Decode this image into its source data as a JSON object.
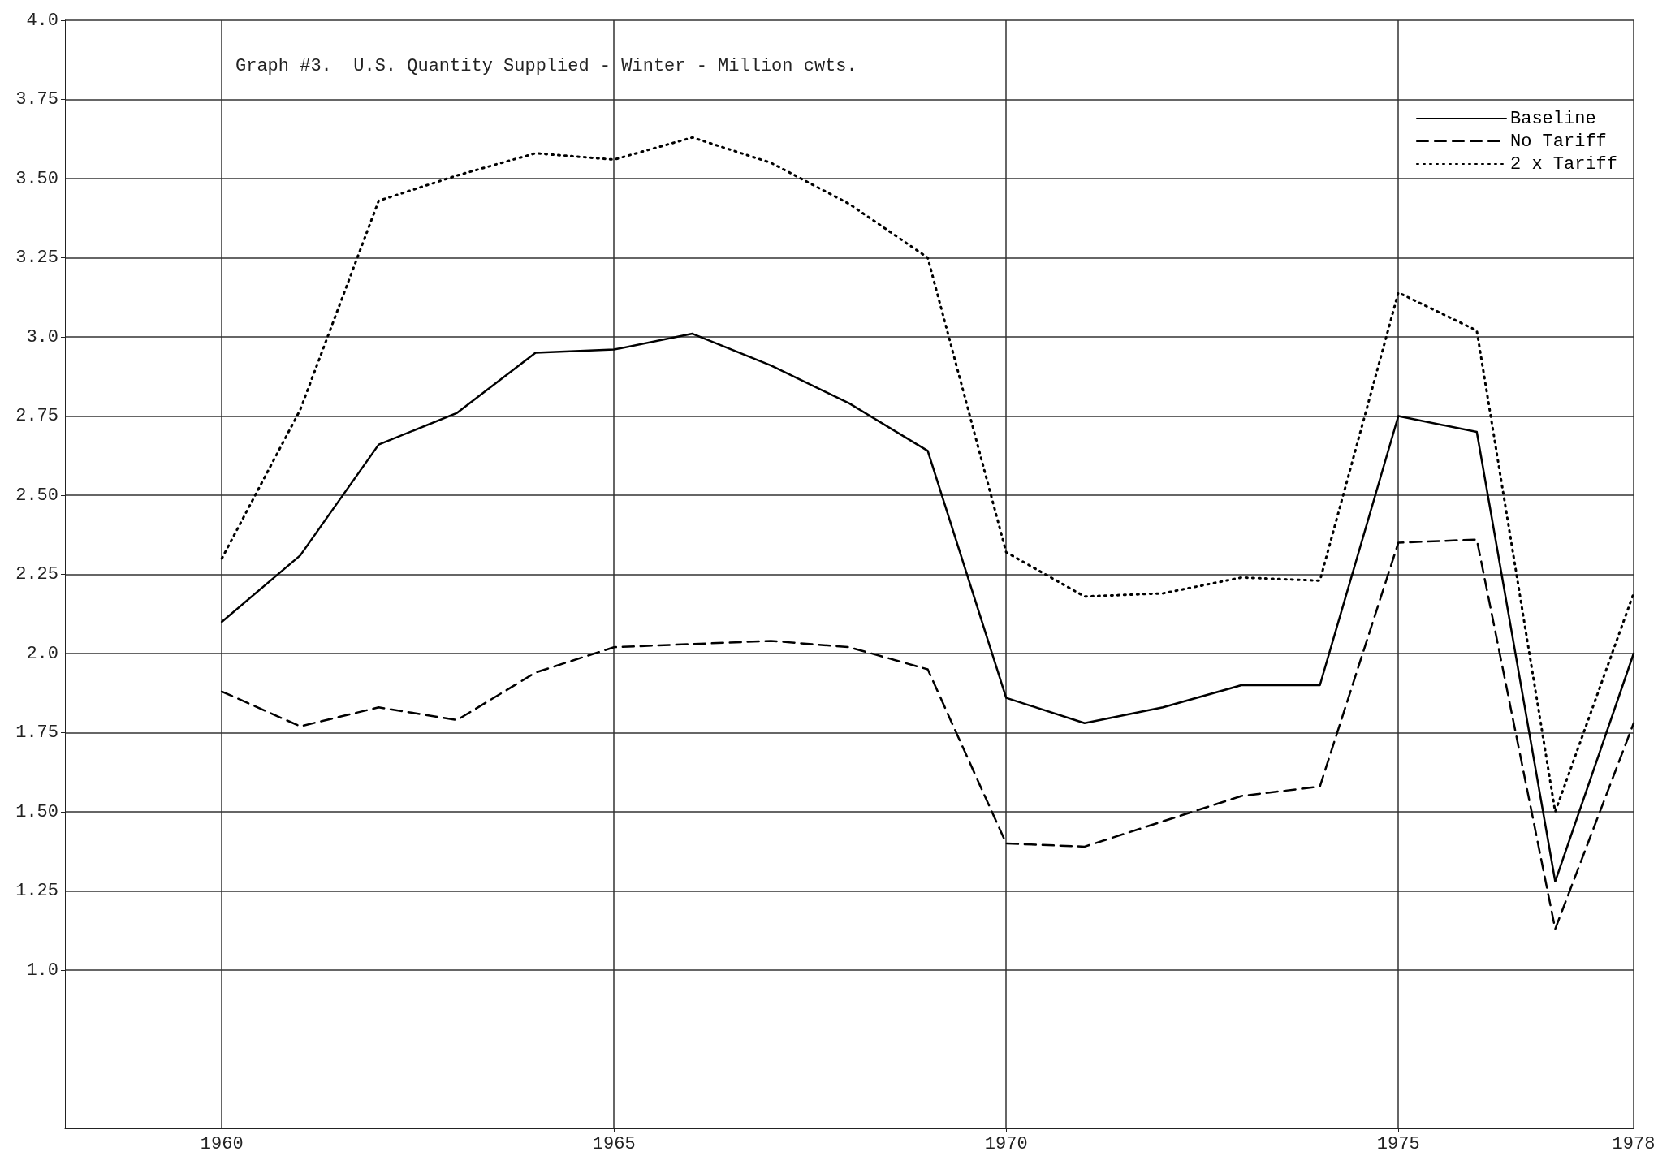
{
  "chart_data": {
    "type": "line",
    "title": "Graph #3.  U.S. Quantity Supplied - Winter - Million cwts.",
    "x": [
      1960,
      1961,
      1962,
      1963,
      1964,
      1965,
      1966,
      1967,
      1968,
      1969,
      1970,
      1971,
      1972,
      1973,
      1974,
      1975,
      1976,
      1977,
      1978
    ],
    "series": [
      {
        "name": "Baseline",
        "color": "#000000",
        "line_style": "solid",
        "values": [
          2.1,
          2.31,
          2.66,
          2.76,
          2.95,
          2.96,
          3.01,
          2.91,
          2.79,
          2.64,
          1.86,
          1.78,
          1.83,
          1.9,
          1.9,
          2.75,
          2.7,
          1.28,
          2.0
        ]
      },
      {
        "name": "No Tariff",
        "color": "#000000",
        "line_style": "dashed",
        "values": [
          1.88,
          1.77,
          1.83,
          1.79,
          1.94,
          2.02,
          2.03,
          2.04,
          2.02,
          1.95,
          1.4,
          1.39,
          1.47,
          1.55,
          1.58,
          2.35,
          2.36,
          1.13,
          1.78
        ]
      },
      {
        "name": "2 x Tariff",
        "color": "#000000",
        "line_style": "dotted",
        "values": [
          2.3,
          2.77,
          3.43,
          3.51,
          3.58,
          3.56,
          3.63,
          3.55,
          3.42,
          3.25,
          2.32,
          2.18,
          2.19,
          2.24,
          2.23,
          3.14,
          3.02,
          1.5,
          2.19
        ]
      }
    ],
    "xlim": [
      1958,
      1978
    ],
    "xticks": [
      1960,
      1965,
      1970,
      1975,
      1978
    ],
    "ylim": [
      0.5,
      4.0
    ],
    "yticks": [
      {
        "value": 1,
        "label": "1.0"
      },
      1.25,
      {
        "value": 1.5,
        "label": "1.50"
      },
      1.75,
      {
        "value": 2,
        "label": "2.0"
      },
      2.25,
      {
        "value": 2.5,
        "label": "2.50"
      },
      2.75,
      {
        "value": 3,
        "label": "3.0"
      },
      3.25,
      {
        "value": 3.5,
        "label": "3.50"
      },
      3.75,
      {
        "value": 4,
        "label": "4.0"
      }
    ],
    "grid": true,
    "legend": "top right",
    "marker": "none"
  }
}
